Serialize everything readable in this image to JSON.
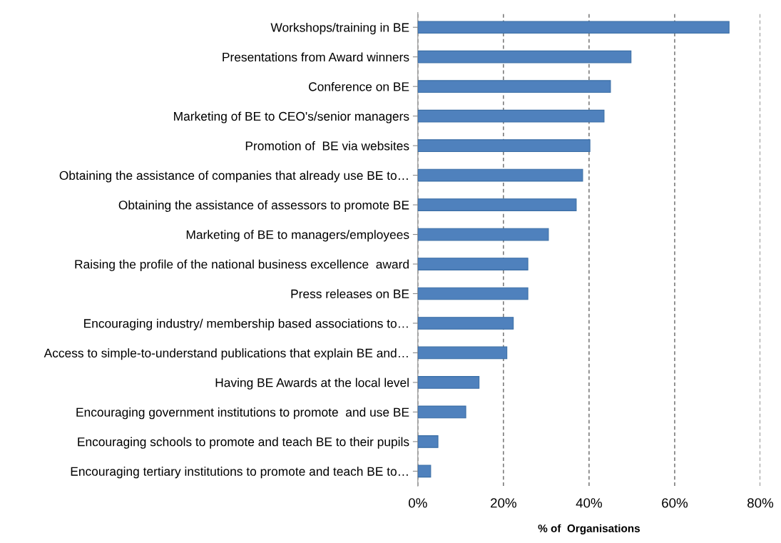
{
  "chart_data": {
    "type": "bar",
    "orientation": "horizontal",
    "xlabel": "% of  Organisations",
    "categories": [
      "Workshops/training in BE",
      "Presentations from Award winners",
      "Conference on BE",
      "Marketing of BE to CEO's/senior managers",
      "Promotion of  BE via websites",
      "Obtaining the assistance of companies that already use BE to…",
      "Obtaining the assistance of assessors to promote BE",
      "Marketing of BE to managers/employees",
      "Raising the profile of the national business excellence  award",
      "Press releases on BE",
      "Encouraging industry/ membership based associations to…",
      "Access to simple-to-understand publications that explain BE and…",
      "Having BE Awards at the local level",
      "Encouraging government institutions to promote  and use BE",
      "Encouraging schools to promote and teach BE to their pupils",
      "Encouraging tertiary institutions to promote and teach BE to…"
    ],
    "values": [
      72.7,
      49.8,
      45.0,
      43.5,
      40.2,
      38.5,
      37.0,
      30.5,
      25.7,
      25.7,
      22.3,
      20.8,
      14.3,
      11.2,
      4.7,
      3.0
    ],
    "color": "#4f81bd",
    "xlim": [
      0,
      80
    ],
    "xticks": [
      {
        "value": 0,
        "label": "0%"
      },
      {
        "value": 20,
        "label": "20%"
      },
      {
        "value": 40,
        "label": "40%"
      },
      {
        "value": 60,
        "label": "60%"
      },
      {
        "value": 80,
        "label": "80%"
      }
    ],
    "grid": "x"
  }
}
